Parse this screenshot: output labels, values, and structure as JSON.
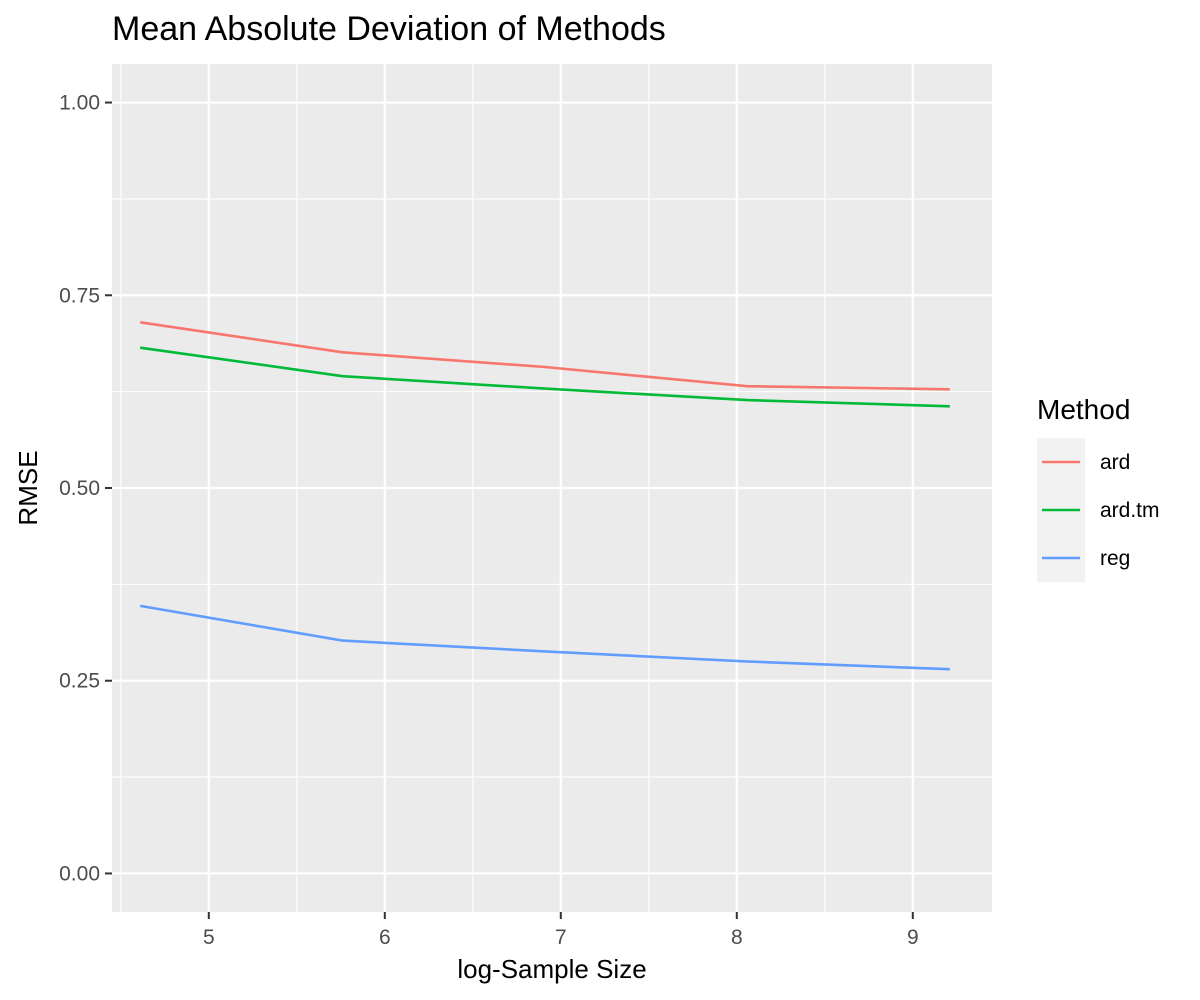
{
  "chart_data": {
    "type": "line",
    "title": "Mean Absolute Deviation of Methods",
    "xlabel": "log-Sample Size",
    "ylabel": "RMSE",
    "xlim": [
      4.45,
      9.45
    ],
    "ylim": [
      -0.05,
      1.05
    ],
    "x_ticks": [
      5,
      6,
      7,
      8,
      9
    ],
    "x_tick_labels": [
      "5",
      "6",
      "7",
      "8",
      "9"
    ],
    "y_ticks": [
      0,
      0.25,
      0.5,
      0.75,
      1.0
    ],
    "y_tick_labels": [
      "0.00",
      "0.25",
      "0.50",
      "0.75",
      "1.00"
    ],
    "x_minor_ticks": [
      4.5,
      5.5,
      6.5,
      7.5,
      8.5
    ],
    "y_minor_ticks": [
      0.125,
      0.375,
      0.625,
      0.875
    ],
    "grid": true,
    "legend": {
      "title": "Method",
      "position": "right"
    },
    "x": [
      4.61,
      5.76,
      6.91,
      8.06,
      9.21
    ],
    "series": [
      {
        "name": "ard",
        "color": "#F8766D",
        "values": [
          0.715,
          0.676,
          0.657,
          0.632,
          0.628
        ]
      },
      {
        "name": "ard.tm",
        "color": "#00BA38",
        "values": [
          0.682,
          0.645,
          0.629,
          0.614,
          0.606
        ]
      },
      {
        "name": "reg",
        "color": "#619CFF",
        "values": [
          0.347,
          0.302,
          0.288,
          0.275,
          0.265
        ]
      }
    ]
  }
}
